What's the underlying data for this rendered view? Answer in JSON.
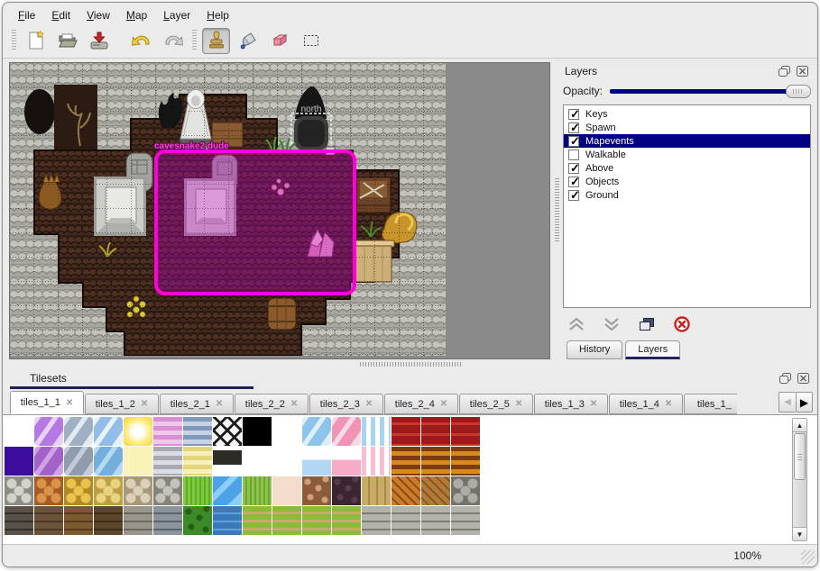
{
  "menubar": {
    "items": [
      "File",
      "Edit",
      "View",
      "Map",
      "Layer",
      "Help"
    ]
  },
  "toolbar": {
    "icons": [
      "new-file",
      "open-file",
      "save-file",
      "undo",
      "redo",
      "stamp-tool",
      "fill-tool",
      "eraser-tool",
      "rect-select-tool"
    ],
    "active_tool": "stamp-tool"
  },
  "map_view": {
    "labels": {
      "entities": "cavesnake2 dude",
      "exit": "north"
    },
    "selection_color": "#ff00dd"
  },
  "layers_panel": {
    "title": "Layers",
    "opacity_label": "Opacity:",
    "opacity_percent": 100,
    "layers": [
      {
        "label": "Keys",
        "checked": true,
        "selected": false
      },
      {
        "label": "Spawn",
        "checked": true,
        "selected": false
      },
      {
        "label": "Mapevents",
        "checked": true,
        "selected": true
      },
      {
        "label": "Walkable",
        "checked": false,
        "selected": false
      },
      {
        "label": "Above",
        "checked": true,
        "selected": false
      },
      {
        "label": "Objects",
        "checked": true,
        "selected": false
      },
      {
        "label": "Ground",
        "checked": true,
        "selected": false
      }
    ],
    "actions": [
      "move-layer-up",
      "move-layer-down",
      "duplicate-layer",
      "delete-layer"
    ],
    "tabs": [
      {
        "label": "History",
        "active": false
      },
      {
        "label": "Layers",
        "active": true
      }
    ]
  },
  "tilesets_panel": {
    "title": "Tilesets",
    "tabs": [
      {
        "label": "tiles_1_1",
        "active": true
      },
      {
        "label": "tiles_1_2",
        "active": false
      },
      {
        "label": "tiles_2_1",
        "active": false
      },
      {
        "label": "tiles_2_2",
        "active": false
      },
      {
        "label": "tiles_2_3",
        "active": false
      },
      {
        "label": "tiles_2_4",
        "active": false
      },
      {
        "label": "tiles_2_5",
        "active": false
      },
      {
        "label": "tiles_1_3",
        "active": false
      },
      {
        "label": "tiles_1_4",
        "active": false
      },
      {
        "label": "tiles_1_",
        "active": false
      }
    ],
    "palette": [
      [
        {
          "k": "empty"
        },
        {
          "k": "crystal",
          "a": "#b678e2",
          "b": "#e9d2f7"
        },
        {
          "k": "crystal",
          "a": "#9fb0c2",
          "b": "#e3eaf2"
        },
        {
          "k": "crystal",
          "a": "#93bce9",
          "b": "#e8f2fb"
        },
        {
          "k": "glow",
          "a": "#ffe97a",
          "b": "#f0cf3a"
        },
        {
          "k": "hstripes",
          "a": "#d98fd2",
          "b": "#efc6ec"
        },
        {
          "k": "hstripes",
          "a": "#8099bb",
          "b": "#c6d3e6"
        },
        {
          "k": "lattice",
          "a": "#f4f4f4",
          "b": "#1c1c1c"
        },
        {
          "k": "solid",
          "a": "#000000"
        },
        {
          "k": "empty"
        },
        {
          "k": "crystal",
          "a": "#8cc4ec",
          "b": "#ddeffb"
        },
        {
          "k": "crystal",
          "a": "#f093b4",
          "b": "#fbd9e6"
        },
        {
          "k": "vstripes",
          "a": "#a6d4f2",
          "b": "#ffffff"
        },
        {
          "k": "carpet",
          "a": "#9c1a1a",
          "b": "#c53a2a"
        },
        {
          "k": "carpet",
          "a": "#9c1a1a",
          "b": "#c53a2a"
        },
        {
          "k": "carpet",
          "a": "#9c1a1a",
          "b": "#c53a2a"
        }
      ],
      [
        {
          "k": "solid",
          "a": "#3c0d9e"
        },
        {
          "k": "crystal",
          "a": "#a262c8",
          "b": "#cfa2e8"
        },
        {
          "k": "crystal",
          "a": "#8e9cac",
          "b": "#c2ccd8"
        },
        {
          "k": "crystal",
          "a": "#74aedc",
          "b": "#b5d9ee"
        },
        {
          "k": "solid",
          "a": "#faf3b8"
        },
        {
          "k": "hstripes",
          "a": "#a9a9b2",
          "b": "#dcdce4"
        },
        {
          "k": "hstripes",
          "a": "#e5d67e",
          "b": "#f7f0bb"
        },
        {
          "k": "plaque",
          "a": "#2e2a26"
        },
        {
          "k": "empty"
        },
        {
          "k": "empty"
        },
        {
          "k": "panel",
          "a": "#b3d7f3"
        },
        {
          "k": "panel",
          "a": "#f7abc9"
        },
        {
          "k": "vstripes",
          "a": "#f8bcd3",
          "b": "#ffffff"
        },
        {
          "k": "hstripes",
          "a": "#7c3c10",
          "b": "#d8891f"
        },
        {
          "k": "hstripes",
          "a": "#7c3c10",
          "b": "#d8891f"
        },
        {
          "k": "hstripes",
          "a": "#7c3c10",
          "b": "#d8891f"
        }
      ],
      [
        {
          "k": "cobble",
          "a": "#d2d2c8",
          "b": "#8c8c80"
        },
        {
          "k": "cobble",
          "a": "#da9349",
          "b": "#a55a26"
        },
        {
          "k": "cobble",
          "a": "#eac34f",
          "b": "#b08a22"
        },
        {
          "k": "cobble",
          "a": "#ead283",
          "b": "#bb9f42"
        },
        {
          "k": "cobble",
          "a": "#dcd0b8",
          "b": "#a89878"
        },
        {
          "k": "cobble",
          "a": "#c4c4bb",
          "b": "#83837b"
        },
        {
          "k": "grass",
          "a": "#7cc93c",
          "b": "#5fae27"
        },
        {
          "k": "water",
          "a": "#4ba2e6",
          "b": "#8ecdf7"
        },
        {
          "k": "grass",
          "a": "#8cc34a",
          "b": "#6da432"
        },
        {
          "k": "solid",
          "a": "#f3dcca"
        },
        {
          "k": "dots",
          "a": "#8c5c3a",
          "b": "#cf9f7c"
        },
        {
          "k": "dots",
          "a": "#3c2532",
          "b": "#5c3a4e"
        },
        {
          "k": "plankv",
          "a": "#cbab68",
          "b": "#a98a46"
        },
        {
          "k": "herring",
          "a": "#cb7c28",
          "b": "#8c4c18"
        },
        {
          "k": "herring",
          "a": "#b07a38",
          "b": "#8a5626"
        },
        {
          "k": "cobble",
          "a": "#adada4",
          "b": "#73736b"
        }
      ],
      [
        {
          "k": "brick",
          "a": "#5a5249",
          "b": "#37302a"
        },
        {
          "k": "brick",
          "a": "#6c5239",
          "b": "#493826"
        },
        {
          "k": "brick",
          "a": "#7c5a31",
          "b": "#593a19"
        },
        {
          "k": "brick",
          "a": "#5c4629",
          "b": "#3b2d19"
        },
        {
          "k": "brick",
          "a": "#99958b",
          "b": "#6b675d"
        },
        {
          "k": "brick",
          "a": "#8c949b",
          "b": "#5c646b"
        },
        {
          "k": "dots",
          "a": "#3c8a28",
          "b": "#266018"
        },
        {
          "k": "brick",
          "a": "#3a7aba",
          "b": "#5ca2da"
        },
        {
          "k": "grassrow",
          "a": "#8abc3a",
          "b": "#c9a968"
        },
        {
          "k": "grassrow",
          "a": "#8abc3a",
          "b": "#c9a968"
        },
        {
          "k": "grassrow",
          "a": "#8abc3a",
          "b": "#c9a968"
        },
        {
          "k": "grassrow",
          "a": "#8abc3a",
          "b": "#c9a968"
        },
        {
          "k": "brick",
          "a": "#b3b3ab",
          "b": "#7c7c74"
        },
        {
          "k": "brick",
          "a": "#b3b3ab",
          "b": "#7c7c74"
        },
        {
          "k": "brick",
          "a": "#b3b3ab",
          "b": "#7c7c74"
        },
        {
          "k": "brick",
          "a": "#b3b3ab",
          "b": "#7c7c74"
        }
      ]
    ]
  },
  "status": {
    "zoom_level": "100%"
  },
  "colors": {
    "selection_magenta": "#ff00dd",
    "highlight_navy": "#000080",
    "slider_navy": "#00008c",
    "tab_underline_navy": "#1e1e5a"
  }
}
